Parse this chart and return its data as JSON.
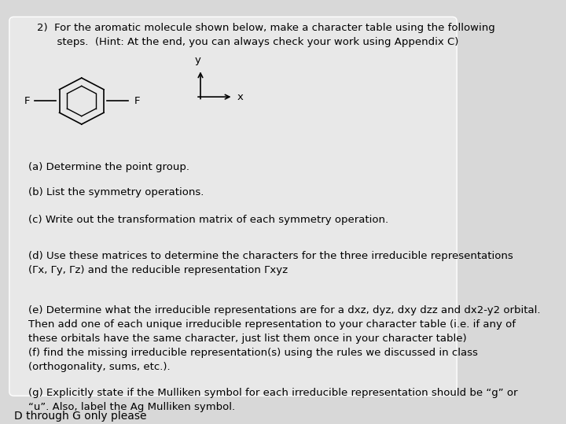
{
  "background_color": "#d8d8d8",
  "card_color": "#e8e8e8",
  "title_text": "2)  For the aromatic molecule shown below, make a character table using the following\n      steps.  (Hint: At the end, you can always check your work using Appendix C)",
  "parts": [
    "(a) Determine the point group.",
    "(b) List the symmetry operations.",
    "(c) Write out the transformation matrix of each symmetry operation.",
    "(d) Use these matrices to determine the characters for the three irreducible representations\n(Γx, Γy, Γz) and the reducible representation Γxyz",
    "(e) Determine what the irreducible representations are for a dxz, dyz, dxy dzz and dx2-y2 orbital.\nThen add one of each unique irreducible representation to your character table (i.e. if any of\nthese orbitals have the same character, just list them once in your character table)",
    "(f) find the missing irreducible representation(s) using the rules we discussed in class\n(orthogonality, sums, etc.).",
    "(g) Explicitly state if the Mulliken symbol for each irreducible representation should be “g” or\n“u”. Also, label the Ag Mulliken symbol."
  ],
  "footer_text": "D through G only please",
  "font_size_title": 9.5,
  "font_size_parts": 9.5,
  "font_size_footer": 10
}
